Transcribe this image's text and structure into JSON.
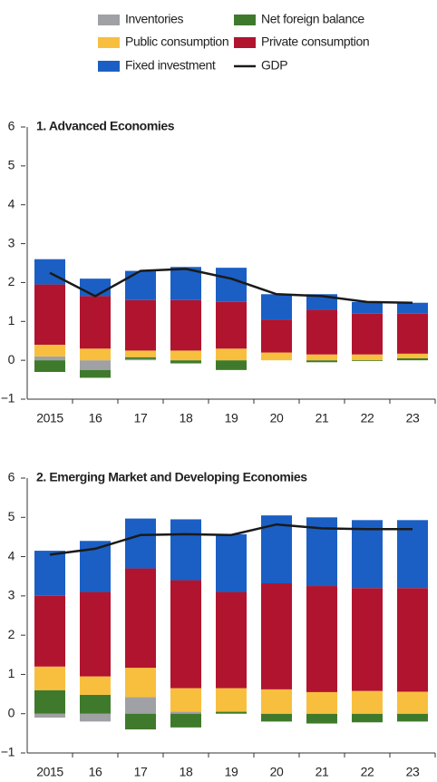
{
  "chart_data": [
    {
      "type": "bar",
      "stacked": true,
      "title": "1. Advanced Economies",
      "categories": [
        "2015",
        "16",
        "17",
        "18",
        "19",
        "20",
        "21",
        "22",
        "23"
      ],
      "ylim": [
        -1,
        6
      ],
      "yticks": [
        {
          "value": -1,
          "label": "−1"
        },
        0,
        1,
        2,
        3,
        4,
        5,
        6
      ],
      "series": [
        {
          "name": "Inventories",
          "color": "#9fa1a4",
          "values": [
            0.1,
            -0.25,
            0.03,
            0,
            0,
            0,
            0,
            0,
            0
          ]
        },
        {
          "name": "Net foreign balance",
          "color": "#3f7a2c",
          "values": [
            -0.3,
            -0.2,
            0.05,
            -0.08,
            -0.25,
            0,
            -0.05,
            -0.02,
            0.05
          ]
        },
        {
          "name": "Public consumption",
          "color": "#f8bf3f",
          "values": [
            0.3,
            0.3,
            0.17,
            0.25,
            0.3,
            0.2,
            0.15,
            0.15,
            0.12
          ]
        },
        {
          "name": "Private consumption",
          "color": "#b1142f",
          "values": [
            1.55,
            1.35,
            1.3,
            1.3,
            1.2,
            0.85,
            1.15,
            1.05,
            1.03
          ]
        },
        {
          "name": "Fixed investment",
          "color": "#1b5fc4",
          "values": [
            0.65,
            0.45,
            0.75,
            0.85,
            0.88,
            0.65,
            0.4,
            0.3,
            0.28
          ]
        },
        {
          "name": "GDP",
          "type": "line",
          "color": "#1a1a1a",
          "values": [
            2.25,
            1.65,
            2.3,
            2.35,
            2.1,
            1.7,
            1.65,
            1.5,
            1.48
          ]
        }
      ]
    },
    {
      "type": "bar",
      "stacked": true,
      "title": "2. Emerging Market and Developing Economies",
      "categories": [
        "2015",
        "16",
        "17",
        "18",
        "19",
        "20",
        "21",
        "22",
        "23"
      ],
      "ylim": [
        -1,
        6
      ],
      "yticks": [
        {
          "value": -1,
          "label": "−1"
        },
        0,
        1,
        2,
        3,
        4,
        5,
        6
      ],
      "series": [
        {
          "name": "Inventories",
          "color": "#9fa1a4",
          "values": [
            -0.1,
            -0.2,
            0.42,
            0.05,
            0,
            0,
            0,
            0,
            0
          ]
        },
        {
          "name": "Net foreign balance",
          "color": "#3f7a2c",
          "values": [
            0.6,
            0.48,
            -0.4,
            -0.35,
            0.05,
            -0.2,
            -0.25,
            -0.22,
            -0.2
          ]
        },
        {
          "name": "Public consumption",
          "color": "#f8bf3f",
          "values": [
            0.6,
            0.47,
            0.75,
            0.6,
            0.6,
            0.62,
            0.55,
            0.58,
            0.56
          ]
        },
        {
          "name": "Private consumption",
          "color": "#b1142f",
          "values": [
            1.8,
            2.15,
            2.53,
            2.75,
            2.45,
            2.7,
            2.7,
            2.62,
            2.64
          ]
        },
        {
          "name": "Fixed investment",
          "color": "#1b5fc4",
          "values": [
            1.15,
            1.3,
            1.27,
            1.55,
            1.47,
            1.73,
            1.75,
            1.73,
            1.73
          ]
        },
        {
          "name": "GDP",
          "type": "line",
          "color": "#1a1a1a",
          "values": [
            4.05,
            4.2,
            4.55,
            4.57,
            4.55,
            4.82,
            4.72,
            4.7,
            4.7
          ]
        }
      ]
    }
  ]
}
